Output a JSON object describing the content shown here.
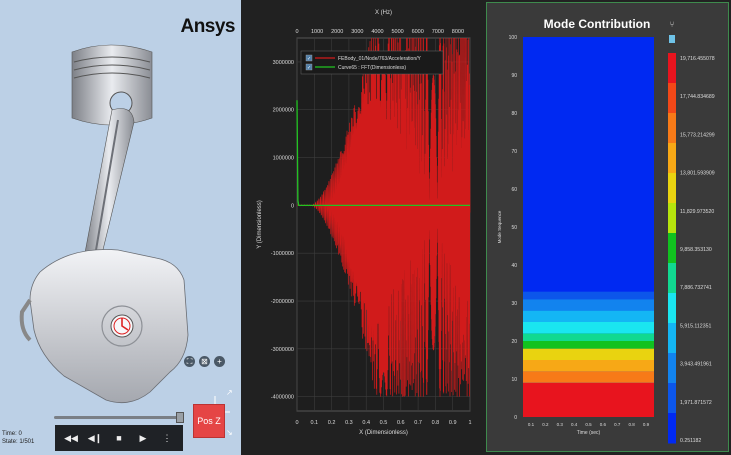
{
  "brand": "Ansys",
  "viewer": {
    "time_label": "Time: 0",
    "state_label": "State: 1/501",
    "view_button": "Pos Z",
    "slider_fraction": 0.98,
    "transport": [
      {
        "name": "rewind-icon",
        "glyph": "◀◀"
      },
      {
        "name": "step-back-icon",
        "glyph": "◀❙"
      },
      {
        "name": "stop-icon",
        "glyph": "■"
      },
      {
        "name": "play-icon",
        "glyph": "▶"
      },
      {
        "name": "more-icon",
        "glyph": "⋮"
      }
    ]
  },
  "chart_data": [
    {
      "type": "line",
      "x_top_label": "X (Hz)",
      "x_top_ticks": [
        "0",
        "1000",
        "2000",
        "3000",
        "4000",
        "5000",
        "6000",
        "7000",
        "8000"
      ],
      "xlabel": "X (Dimensionless)",
      "x_ticks": [
        "0",
        "0.1",
        "0.2",
        "0.3",
        "0.4",
        "0.5",
        "0.6",
        "0.7",
        "0.8",
        "0.9",
        "1"
      ],
      "ylabel": "Y (Dimensionless)",
      "y_ticks": [
        "3000000",
        "2000000",
        "1000000",
        "0",
        "-1000000",
        "-2000000",
        "-3000000",
        "-4000000"
      ],
      "ylim": [
        -4300000,
        3500000
      ],
      "grid": true,
      "legend_placement": "top",
      "series": [
        {
          "name": "FEBody_01/Node/763/Acceleration/Y",
          "color": "#d11b1b",
          "description": "oscillation growing from ~0 at x=0.1 to about ±3,800,000 by x=0.45, then dense oscillation between about -4,200,000 and 3,500,000 to x=1"
        },
        {
          "name": "Curve65 : FFT(Dimensionless)",
          "color": "#22c322",
          "points": [
            [
              0,
              2200000
            ],
            [
              0.005,
              100000
            ],
            [
              0.01,
              0
            ],
            [
              1,
              0
            ]
          ]
        }
      ]
    },
    {
      "type": "heatmap",
      "title": "Mode Contribution",
      "xlabel": "Time (sec)",
      "x_ticks": [
        "0.1",
        "0.2",
        "0.3",
        "0.4",
        "0.5",
        "0.6",
        "0.7",
        "0.8",
        "0.9"
      ],
      "ylabel": "Mode Sequence",
      "y_ticks": [
        "0",
        "10",
        "20",
        "30",
        "40",
        "50",
        "60",
        "70",
        "80",
        "90",
        "100"
      ],
      "ylim": [
        0,
        100
      ],
      "colorbar_labels": [
        "19,716.455078",
        "17,744.834689",
        "15,773.214299",
        "13,801.593909",
        "11,829.973520",
        "9,858.353130",
        "7,886.732741",
        "5,915.112351",
        "3,943.491961",
        "1,971.871572",
        "0.251182"
      ],
      "colorbar_colors": [
        "#e8141e",
        "#f24818",
        "#f77a18",
        "#f7a816",
        "#e9d310",
        "#b6e40d",
        "#11c21f",
        "#11d990",
        "#1ae6f0",
        "#14b6f4",
        "#1283ee",
        "#0c56ea",
        "#0029f2"
      ],
      "bands": [
        {
          "from": 0,
          "to": 5,
          "color": "#e8141e"
        },
        {
          "from": 5,
          "to": 9,
          "color": "#e8141e"
        },
        {
          "from": 9,
          "to": 12,
          "color": "#f77a18"
        },
        {
          "from": 12,
          "to": 15,
          "color": "#f7a816"
        },
        {
          "from": 15,
          "to": 18,
          "color": "#e9d310"
        },
        {
          "from": 18,
          "to": 20,
          "color": "#11c21f"
        },
        {
          "from": 20,
          "to": 22,
          "color": "#11d990"
        },
        {
          "from": 22,
          "to": 25,
          "color": "#1ae6f0"
        },
        {
          "from": 25,
          "to": 28,
          "color": "#14b6f4"
        },
        {
          "from": 28,
          "to": 31,
          "color": "#1283ee"
        },
        {
          "from": 31,
          "to": 33,
          "color": "#0c56ea"
        },
        {
          "from": 33,
          "to": 100,
          "color": "#0029f2"
        }
      ]
    }
  ]
}
